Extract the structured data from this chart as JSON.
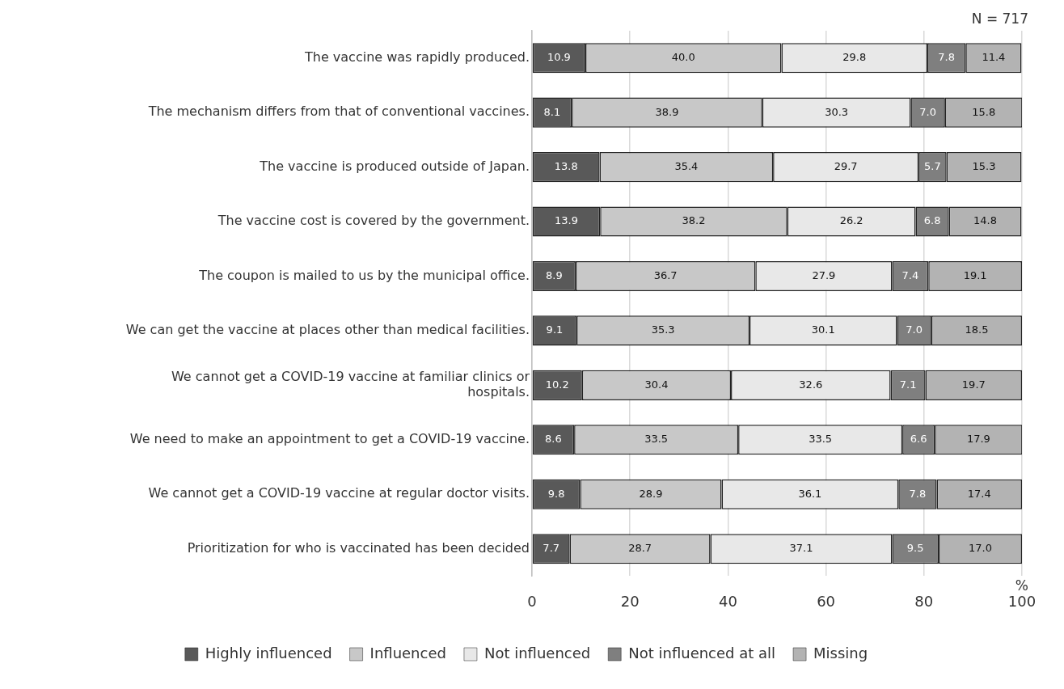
{
  "chart_data": {
    "type": "bar",
    "orientation": "horizontal",
    "stacked": true,
    "xlabel": "%",
    "annotations": [
      "N = 717"
    ],
    "categories": [
      "The vaccine was rapidly produced.",
      "The mechanism differs from that of conventional vaccines.",
      "The vaccine is produced outside of Japan.",
      "The vaccine cost is covered by the government.",
      "The coupon is mailed to us by the municipal office.",
      "We can get the vaccine at places other than medical facilities.",
      "We cannot get a COVID-19 vaccine at familiar clinics or hospitals.",
      "We need to make an appointment to get a COVID-19 vaccine.",
      "We cannot get a COVID-19 vaccine at regular doctor visits.",
      "Prioritization for who is vaccinated has been decided"
    ],
    "series": [
      {
        "name": "Highly influenced",
        "color": "#595959",
        "values": [
          10.9,
          8.1,
          13.8,
          13.9,
          8.9,
          9.1,
          10.2,
          8.6,
          9.8,
          7.7
        ],
        "value_labels": [
          "10.9",
          "8.1",
          "13.8",
          "13.9",
          "8.9",
          "9.1",
          "10.2",
          "8.6",
          "9.8",
          "7.7"
        ]
      },
      {
        "name": "Influenced",
        "color": "#c8c8c8",
        "values": [
          40.0,
          38.9,
          35.4,
          38.2,
          36.7,
          35.3,
          30.4,
          33.5,
          28.9,
          28.7
        ],
        "value_labels": [
          "40.0",
          "38.9",
          "35.4",
          "38.2",
          "36.7",
          "35.3",
          "30.4",
          "33.5",
          "28.9",
          "28.7"
        ]
      },
      {
        "name": "Not influenced",
        "color": "#e8e8e8",
        "values": [
          29.8,
          30.3,
          29.7,
          26.2,
          27.9,
          30.1,
          32.6,
          33.5,
          36.1,
          37.1
        ],
        "value_labels": [
          "29.8",
          "30.3",
          "29.7",
          "26.2",
          "27.9",
          "30.1",
          "32.6",
          "33.5",
          "36.1",
          "37.1"
        ]
      },
      {
        "name": "Not influenced at all",
        "color": "#7f7f7f",
        "values": [
          7.8,
          7.0,
          5.7,
          6.8,
          7.4,
          7.0,
          7.1,
          6.6,
          7.8,
          9.5
        ],
        "value_labels": [
          "7.8",
          "7.0",
          "5.7",
          "6.8",
          "7.4",
          "7.0",
          "7.1",
          "6.6",
          "7.8",
          "9.5"
        ]
      },
      {
        "name": "Missing",
        "color": "#b3b3b3",
        "values": [
          11.4,
          15.8,
          15.3,
          14.8,
          19.1,
          18.5,
          19.7,
          17.9,
          17.4,
          17.0
        ],
        "value_labels": [
          "11.4",
          "15.8",
          "15.3",
          "14.8",
          "19.1",
          "18.5",
          "19.7",
          "17.9",
          "17.4",
          "17.0"
        ]
      }
    ],
    "xlim": [
      0,
      100
    ],
    "xticks": [
      0,
      20,
      40,
      60,
      80,
      100
    ],
    "grid": "x",
    "legend": "bottom"
  }
}
